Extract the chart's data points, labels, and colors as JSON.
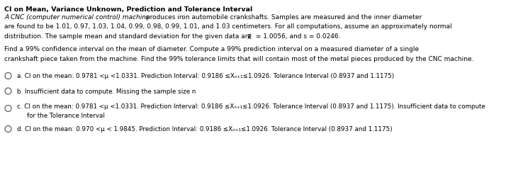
{
  "title": "CI on Mean, Variance Unknown, Prediction and Tolerance Interval",
  "background_color": "#ffffff",
  "text_color": "#000000",
  "figsize": [
    7.14,
    2.47
  ],
  "dpi": 100,
  "p1_italic": "A CNC (computer numerical control) machine",
  "p1_normal": " produces iron automobile crankshafts. Samples are measured and the inner diameter",
  "p1_line2": "are found to be 1.01, 0.97, 1.03, 1.04, 0.99, 0.98, 0.99, 1.01, and 1.03 centimeters. For all computations, assume an approximately normal",
  "p1_line3": "distribution. The sample mean and standard deviation for the given data are",
  "p1_line3b": "= 1.0056, and s = 0.0246.",
  "p2_line1": "Find a 99% confidence interval on the mean of diameter. Compute a 99% prediction interval on a measured diameter of a single",
  "p2_line2": "crankshaft piece taken from the machine. Find the 99% tolerance limits that will contain most of the metal pieces produced by the CNC machine.",
  "opt_a": "a. CI on the mean: 0.9781 <μ <1.0331. Prediction Interval: 0.9186 ≤Xₙ₊₁≤1.0926. Tolerance Interval (0.8937 and 1.1175)",
  "opt_b": "b. Insufficient data to compute. Missing the sample size n",
  "opt_c1": "c. CI on the mean: 0.9781 <μ <1.0331. Prediction Interval: 0.9186 ≤Xₙ₊₁≤1.0926. Tolerance Interval (0.8937 and 1.1175). Insufficient data to compute",
  "opt_c2": "   for the Tolerance Interval",
  "opt_d": "d. CI on the mean: 0.970 <μ < 1.9845. Prediction Interval: 0.9186 ≤Xₙ₊₁≤1.0926. Tolerance Interval (0.8937 and 1.1175)",
  "fs_title": 6.8,
  "fs_body": 6.5,
  "fs_opt": 6.3
}
